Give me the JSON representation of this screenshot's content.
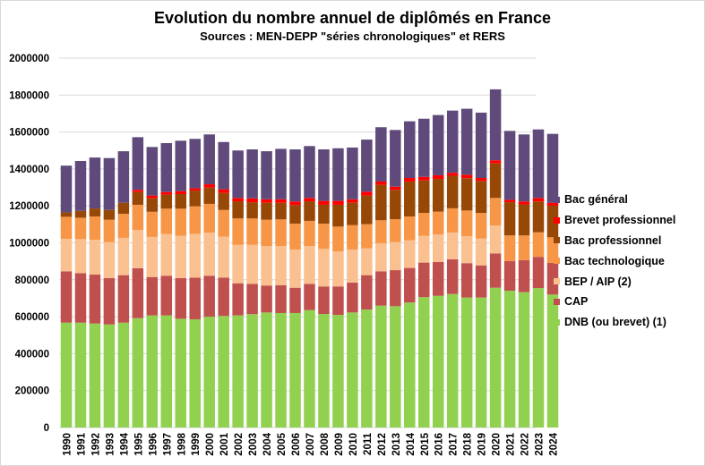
{
  "chart_data": {
    "type": "bar",
    "stacked": true,
    "title": "Evolution du nombre annuel de diplômés en France",
    "subtitle": "Sources : MEN-DEPP \"séries chronologiques\" et RERS",
    "xlabel": "",
    "ylabel": "",
    "ylim": [
      0,
      2000000
    ],
    "yticks": [
      0,
      200000,
      400000,
      600000,
      800000,
      1000000,
      1200000,
      1400000,
      1600000,
      1800000,
      2000000
    ],
    "ytick_labels": [
      "0",
      "200000",
      "400000",
      "600000",
      "800000",
      "1000000",
      "1200000",
      "1400000",
      "1600000",
      "1800000",
      "2000000"
    ],
    "grid": true,
    "legend_position": "right",
    "categories": [
      "1990",
      "1991",
      "1992",
      "1993",
      "1994",
      "1995",
      "1996",
      "1997",
      "1998",
      "1999",
      "2000",
      "2001",
      "2002",
      "2003",
      "2004",
      "2005",
      "2006",
      "2007",
      "2008",
      "2009",
      "2010",
      "2011",
      "2012",
      "2013",
      "2014",
      "2015",
      "2016",
      "2017",
      "2018",
      "2019",
      "2020",
      "2021",
      "2022",
      "2023",
      "2024"
    ],
    "series": [
      {
        "name": "DNB (ou brevet) (1)",
        "color": "#92d050",
        "values": [
          568000,
          568000,
          563000,
          558000,
          568000,
          592000,
          607000,
          607000,
          589000,
          586000,
          600000,
          604000,
          607000,
          614000,
          623000,
          620000,
          620000,
          636000,
          615000,
          610000,
          623000,
          639000,
          660000,
          657000,
          677000,
          706000,
          713000,
          723000,
          704000,
          704000,
          757000,
          741000,
          733000,
          755000,
          720000
        ]
      },
      {
        "name": "CAP",
        "color": "#c0504d",
        "values": [
          278000,
          268000,
          265000,
          251000,
          257000,
          270000,
          208000,
          215000,
          220000,
          226000,
          222000,
          208000,
          174000,
          164000,
          146000,
          151000,
          137000,
          142000,
          149000,
          154000,
          162000,
          186000,
          186000,
          195000,
          187000,
          187000,
          183000,
          188000,
          186000,
          174000,
          186000,
          161000,
          173000,
          169000,
          171000
        ]
      },
      {
        "name": "BEP / AIP (2)",
        "color": "#fac090",
        "values": [
          176000,
          184000,
          189000,
          195000,
          202000,
          208000,
          217000,
          226000,
          229000,
          236000,
          233000,
          221000,
          208000,
          211000,
          213000,
          212000,
          207000,
          205000,
          203000,
          190000,
          179000,
          145000,
          152000,
          152000,
          150000,
          145000,
          149000,
          145000,
          146000,
          145000,
          151000,
          0,
          0,
          0,
          0
        ]
      },
      {
        "name": "Bac technologique",
        "color": "#f79646",
        "values": [
          119000,
          116000,
          126000,
          121000,
          130000,
          136000,
          136000,
          137000,
          147000,
          150000,
          156000,
          145000,
          143000,
          143000,
          143000,
          144000,
          140000,
          136000,
          137000,
          134000,
          132000,
          131000,
          124000,
          124000,
          129000,
          124000,
          124000,
          131000,
          139000,
          139000,
          149000,
          138000,
          134000,
          133000,
          139000
        ]
      },
      {
        "name": "Bac professionnel",
        "color": "#974806",
        "values": [
          24000,
          37000,
          43000,
          53000,
          60000,
          69000,
          73000,
          76000,
          79000,
          85000,
          88000,
          92000,
          93000,
          88000,
          92000,
          90000,
          100000,
          106000,
          102000,
          118000,
          121000,
          155000,
          192000,
          159000,
          189000,
          176000,
          177000,
          176000,
          175000,
          173000,
          187000,
          180000,
          168000,
          167000,
          171000
        ]
      },
      {
        "name": "Brevet professionnel",
        "color": "#ff0000",
        "values": [
          0,
          0,
          0,
          0,
          0,
          12000,
          15000,
          14000,
          16000,
          13000,
          18000,
          20000,
          18000,
          21000,
          19000,
          19000,
          20000,
          18000,
          21000,
          21000,
          19000,
          21000,
          18000,
          17000,
          19000,
          19000,
          20000,
          16000,
          19000,
          16000,
          17000,
          13000,
          16000,
          19000,
          16000
        ]
      },
      {
        "name": "Bac général",
        "color": "#604a7b",
        "values": [
          253000,
          270000,
          276000,
          281000,
          279000,
          285000,
          263000,
          265000,
          273000,
          267000,
          270000,
          256000,
          257000,
          265000,
          260000,
          273000,
          282000,
          281000,
          279000,
          285000,
          280000,
          282000,
          294000,
          307000,
          307000,
          315000,
          326000,
          337000,
          357000,
          354000,
          384000,
          373000,
          363000,
          371000,
          373000
        ]
      }
    ],
    "legend_order": [
      "Bac général",
      "Brevet professionnel",
      "Bac professionnel",
      "Bac technologique",
      "BEP / AIP (2)",
      "CAP",
      "DNB (ou brevet) (1)"
    ]
  }
}
